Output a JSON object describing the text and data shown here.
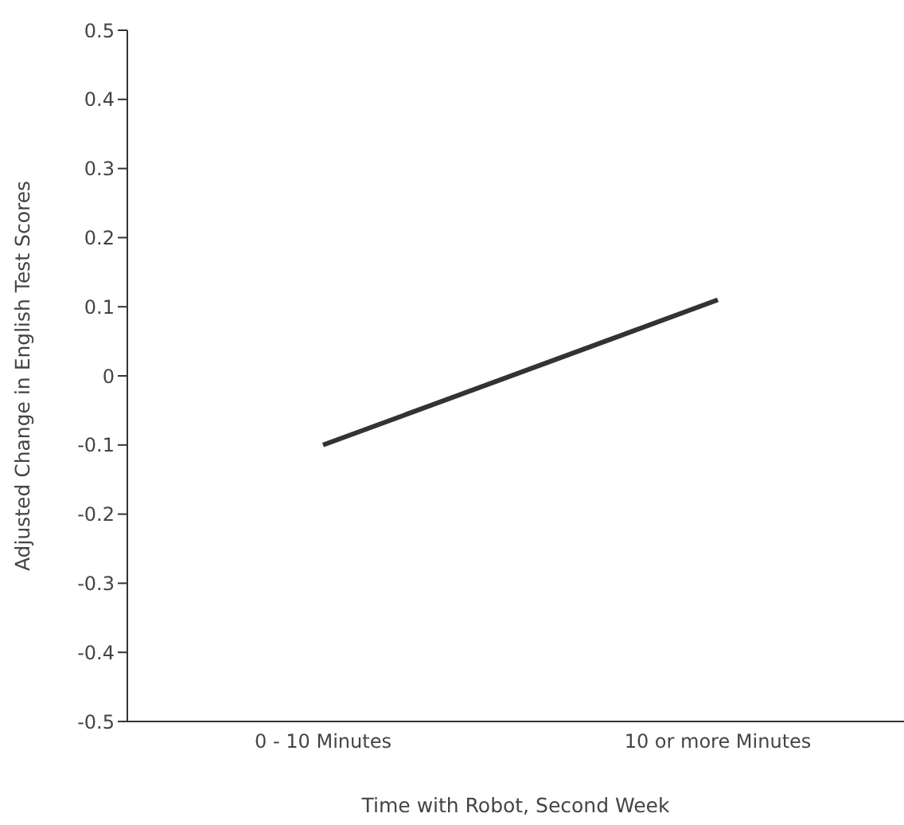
{
  "chart_data": {
    "type": "line",
    "xlabel": "Time with Robot, Second Week",
    "ylabel": "Adjusted Change in English Test Scores",
    "categories": [
      "0 - 10 Minutes",
      "10 or more Minutes"
    ],
    "series": [
      {
        "color": "#333333",
        "values": [
          -0.1,
          0.11
        ]
      }
    ],
    "ylim": [
      -0.5,
      0.5
    ],
    "yticks": [
      -0.5,
      -0.4,
      -0.3,
      -0.2,
      -0.1,
      0,
      0.1,
      0.2,
      0.3,
      0.4,
      0.5
    ],
    "grid": false,
    "marker": "none",
    "line_style": "solid"
  }
}
